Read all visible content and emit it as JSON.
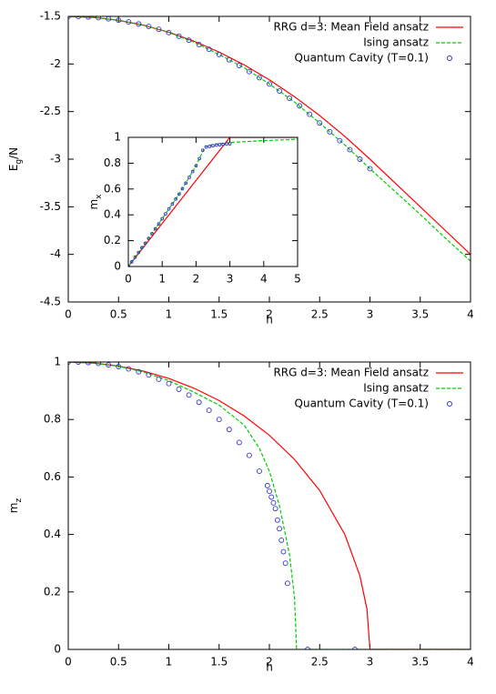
{
  "chart_data": [
    {
      "type": "line",
      "xlabel": "h",
      "ylabel": {
        "main": "E",
        "sub": "g",
        "tail": "/N"
      },
      "xlim": [
        0,
        4
      ],
      "ylim": [
        -4.5,
        -1.5
      ],
      "xticks": [
        0,
        0.5,
        1,
        1.5,
        2,
        2.5,
        3,
        3.5,
        4
      ],
      "yticks": [
        -1.5,
        -2,
        -2.5,
        -3,
        -3.5,
        -4,
        -4.5
      ],
      "legend": "upper right",
      "series": [
        {
          "name": "RRG d=3: Mean Field ansatz",
          "color": "#ff0000",
          "style": "solid",
          "x": [
            0,
            0.25,
            0.5,
            0.75,
            1,
            1.25,
            1.5,
            1.75,
            2,
            2.25,
            2.5,
            2.75,
            3,
            3.25,
            3.5,
            3.75,
            4
          ],
          "values": [
            -1.5,
            -1.5104,
            -1.5417,
            -1.5938,
            -1.6667,
            -1.7604,
            -1.875,
            -2.0104,
            -2.1667,
            -2.3438,
            -2.5417,
            -2.7604,
            -3.0,
            -3.25,
            -3.5,
            -3.75,
            -4.0
          ]
        },
        {
          "name": "Ising ansatz",
          "color": "#00cc00",
          "style": "dashed",
          "x": [
            0,
            0.25,
            0.5,
            0.75,
            1,
            1.25,
            1.5,
            1.75,
            2,
            2.25,
            2.5,
            2.75,
            3,
            3.25,
            3.5,
            3.75,
            4
          ],
          "values": [
            -1.5,
            -1.51,
            -1.54,
            -1.59,
            -1.67,
            -1.77,
            -1.9,
            -2.04,
            -2.21,
            -2.4,
            -2.62,
            -2.85,
            -3.1,
            -3.34,
            -3.58,
            -3.83,
            -4.07
          ]
        },
        {
          "name": "Quantum Cavity (T=0.1)",
          "color": "#3333cc",
          "style": "points",
          "x": [
            0,
            0.1,
            0.2,
            0.3,
            0.4,
            0.5,
            0.6,
            0.7,
            0.8,
            0.9,
            1,
            1.1,
            1.2,
            1.3,
            1.4,
            1.5,
            1.6,
            1.7,
            1.8,
            1.9,
            2,
            2.1,
            2.2,
            2.3,
            2.4,
            2.5,
            2.6,
            2.7,
            2.8,
            2.9,
            3
          ],
          "values": [
            -1.5,
            -1.502,
            -1.506,
            -1.514,
            -1.526,
            -1.54,
            -1.558,
            -1.58,
            -1.606,
            -1.636,
            -1.67,
            -1.708,
            -1.75,
            -1.796,
            -1.846,
            -1.9,
            -1.956,
            -2.016,
            -2.08,
            -2.144,
            -2.21,
            -2.284,
            -2.36,
            -2.44,
            -2.528,
            -2.62,
            -2.712,
            -2.806,
            -2.9,
            -3.0,
            -3.1
          ]
        }
      ]
    },
    {
      "type": "line",
      "ylabel": {
        "main": "m",
        "sub": "x"
      },
      "xlim": [
        0,
        5
      ],
      "ylim": [
        0,
        1
      ],
      "xticks": [
        0,
        1,
        2,
        3,
        4,
        5
      ],
      "yticks": [
        0,
        0.2,
        0.4,
        0.6,
        0.8,
        1
      ],
      "series": [
        {
          "color": "#ff0000",
          "style": "solid",
          "x": [
            0,
            3,
            5
          ],
          "values": [
            0,
            1,
            1
          ]
        },
        {
          "color": "#00cc00",
          "style": "dashed",
          "x": [
            0,
            0.5,
            1,
            1.5,
            2,
            2.27,
            2.5,
            3,
            4,
            5
          ],
          "values": [
            0,
            0.18,
            0.37,
            0.56,
            0.78,
            0.93,
            0.945,
            0.96,
            0.975,
            0.985
          ]
        },
        {
          "color": "#3333cc",
          "style": "points",
          "x": [
            0,
            0.1,
            0.2,
            0.3,
            0.4,
            0.5,
            0.6,
            0.7,
            0.8,
            0.9,
            1,
            1.1,
            1.2,
            1.3,
            1.4,
            1.5,
            1.6,
            1.7,
            1.8,
            1.9,
            2,
            2.1,
            2.2,
            2.3,
            2.4,
            2.5,
            2.6,
            2.7,
            2.8,
            2.9,
            3
          ],
          "values": [
            0,
            0.036,
            0.072,
            0.108,
            0.145,
            0.18,
            0.218,
            0.255,
            0.292,
            0.33,
            0.37,
            0.408,
            0.446,
            0.484,
            0.522,
            0.56,
            0.603,
            0.646,
            0.69,
            0.735,
            0.78,
            0.835,
            0.9,
            0.925,
            0.93,
            0.935,
            0.94,
            0.943,
            0.946,
            0.948,
            0.95
          ]
        }
      ]
    },
    {
      "type": "line",
      "xlabel": "h",
      "ylabel": {
        "main": "m",
        "sub": "z"
      },
      "xlim": [
        0,
        4
      ],
      "ylim": [
        0,
        1
      ],
      "xticks": [
        0,
        0.5,
        1,
        1.5,
        2,
        2.5,
        3,
        3.5,
        4
      ],
      "yticks": [
        0,
        0.2,
        0.4,
        0.6,
        0.8,
        1
      ],
      "legend": "upper right",
      "series": [
        {
          "name": "RRG d=3: Mean Field ansatz",
          "color": "#ff0000",
          "style": "solid",
          "x": [
            0,
            0.25,
            0.5,
            0.75,
            1,
            1.25,
            1.5,
            1.75,
            2,
            2.25,
            2.5,
            2.75,
            2.9,
            2.97,
            3,
            4
          ],
          "values": [
            1,
            0.9965,
            0.986,
            0.968,
            0.943,
            0.909,
            0.866,
            0.812,
            0.745,
            0.661,
            0.553,
            0.4,
            0.256,
            0.141,
            0,
            0
          ]
        },
        {
          "name": "Ising ansatz",
          "color": "#00cc00",
          "style": "dashed",
          "x": [
            0,
            0.25,
            0.5,
            0.75,
            1,
            1.25,
            1.5,
            1.75,
            1.9,
            2,
            2.1,
            2.2,
            2.25,
            2.27,
            4
          ],
          "values": [
            1,
            0.996,
            0.985,
            0.965,
            0.935,
            0.895,
            0.85,
            0.78,
            0.7,
            0.62,
            0.5,
            0.33,
            0.18,
            0,
            0
          ]
        },
        {
          "name": "Quantum Cavity (T=0.1)",
          "color": "#3333cc",
          "style": "points",
          "x": [
            0,
            0.1,
            0.2,
            0.3,
            0.4,
            0.5,
            0.6,
            0.7,
            0.8,
            0.9,
            1,
            1.1,
            1.2,
            1.3,
            1.4,
            1.5,
            1.6,
            1.7,
            1.8,
            1.9,
            1.98,
            2,
            2.02,
            2.04,
            2.06,
            2.08,
            2.1,
            2.12,
            2.14,
            2.16,
            2.18,
            2.38,
            2.85
          ],
          "values": [
            1,
            1,
            0.998,
            0.995,
            0.99,
            0.984,
            0.976,
            0.966,
            0.955,
            0.94,
            0.925,
            0.905,
            0.885,
            0.86,
            0.832,
            0.8,
            0.765,
            0.72,
            0.675,
            0.62,
            0.57,
            0.55,
            0.53,
            0.51,
            0.49,
            0.45,
            0.42,
            0.38,
            0.34,
            0.3,
            0.23,
            0,
            0
          ]
        }
      ]
    }
  ]
}
